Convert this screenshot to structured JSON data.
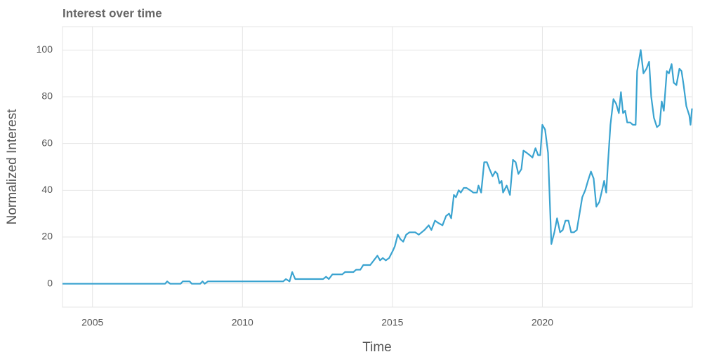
{
  "chart_data": {
    "type": "line",
    "title": "Interest over time",
    "x_label": "Time",
    "y_label": "Normalized Interest",
    "xlim": [
      2004,
      2025
    ],
    "ylim": [
      -10,
      110
    ],
    "xticks": [
      2005,
      2010,
      2015,
      2020
    ],
    "yticks": [
      0,
      20,
      40,
      60,
      80,
      100
    ],
    "grid": true,
    "x": [
      2004.0,
      2007.42,
      2007.49,
      2007.59,
      2007.94,
      2008.01,
      2008.24,
      2008.31,
      2008.59,
      2008.67,
      2008.74,
      2008.85,
      2011.36,
      2011.45,
      2011.57,
      2011.66,
      2011.76,
      2012.69,
      2012.79,
      2012.88,
      2013.0,
      2013.33,
      2013.42,
      2013.7,
      2013.79,
      2013.93,
      2014.03,
      2014.26,
      2014.5,
      2014.59,
      2014.68,
      2014.78,
      2014.89,
      2015.01,
      2015.08,
      2015.18,
      2015.27,
      2015.36,
      2015.46,
      2015.57,
      2015.76,
      2015.88,
      2016.07,
      2016.21,
      2016.3,
      2016.42,
      2016.53,
      2016.67,
      2016.79,
      2016.89,
      2016.96,
      2017.05,
      2017.12,
      2017.21,
      2017.28,
      2017.38,
      2017.47,
      2017.59,
      2017.7,
      2017.82,
      2017.87,
      2017.96,
      2018.06,
      2018.15,
      2018.24,
      2018.34,
      2018.43,
      2018.5,
      2018.57,
      2018.64,
      2018.69,
      2018.81,
      2018.92,
      2019.02,
      2019.11,
      2019.2,
      2019.3,
      2019.37,
      2019.48,
      2019.58,
      2019.67,
      2019.77,
      2019.86,
      2019.93,
      2020.0,
      2020.09,
      2020.19,
      2020.3,
      2020.4,
      2020.49,
      2020.59,
      2020.68,
      2020.77,
      2020.87,
      2020.96,
      2021.05,
      2021.15,
      2021.24,
      2021.33,
      2021.43,
      2021.52,
      2021.62,
      2021.71,
      2021.8,
      2021.9,
      2021.99,
      2022.06,
      2022.13,
      2022.18,
      2022.27,
      2022.37,
      2022.46,
      2022.55,
      2022.62,
      2022.69,
      2022.76,
      2022.83,
      2022.93,
      2023.02,
      2023.11,
      2023.16,
      2023.28,
      2023.37,
      2023.47,
      2023.56,
      2023.63,
      2023.72,
      2023.82,
      2023.91,
      2023.98,
      2024.05,
      2024.15,
      2024.22,
      2024.31,
      2024.38,
      2024.47,
      2024.57,
      2024.64,
      2024.71,
      2024.8,
      2024.9,
      2024.94,
      2024.99
    ],
    "series": [
      {
        "color": "#3aa3d0",
        "values": [
          0,
          0,
          1,
          0,
          0,
          1,
          1,
          0,
          0,
          1,
          0,
          1,
          1,
          2,
          1,
          5,
          2,
          2,
          3,
          2,
          4,
          4,
          5,
          5,
          6,
          6,
          8,
          8,
          12,
          10,
          11,
          10,
          11,
          14,
          16,
          21,
          19,
          18,
          21,
          22,
          22,
          21,
          23,
          25,
          23,
          27,
          26,
          25,
          29,
          30,
          28,
          38,
          37,
          40,
          39,
          41,
          41,
          40,
          39,
          39,
          42,
          39,
          52,
          52,
          49,
          46,
          48,
          47,
          43,
          44,
          39,
          42,
          38,
          53,
          52,
          47,
          49,
          57,
          56,
          55,
          54,
          58,
          55,
          55,
          68,
          66,
          56,
          17,
          22,
          28,
          22,
          23,
          27,
          27,
          22,
          22,
          23,
          30,
          37,
          40,
          44,
          48,
          45,
          33,
          35,
          40,
          44,
          39,
          50,
          68,
          79,
          77,
          73,
          82,
          73,
          74,
          69,
          69,
          68,
          68,
          91,
          100,
          90,
          92,
          95,
          80,
          71,
          67,
          68,
          78,
          74,
          91,
          90,
          94,
          86,
          85,
          92,
          91,
          85,
          76,
          72,
          68,
          75
        ]
      }
    ]
  }
}
